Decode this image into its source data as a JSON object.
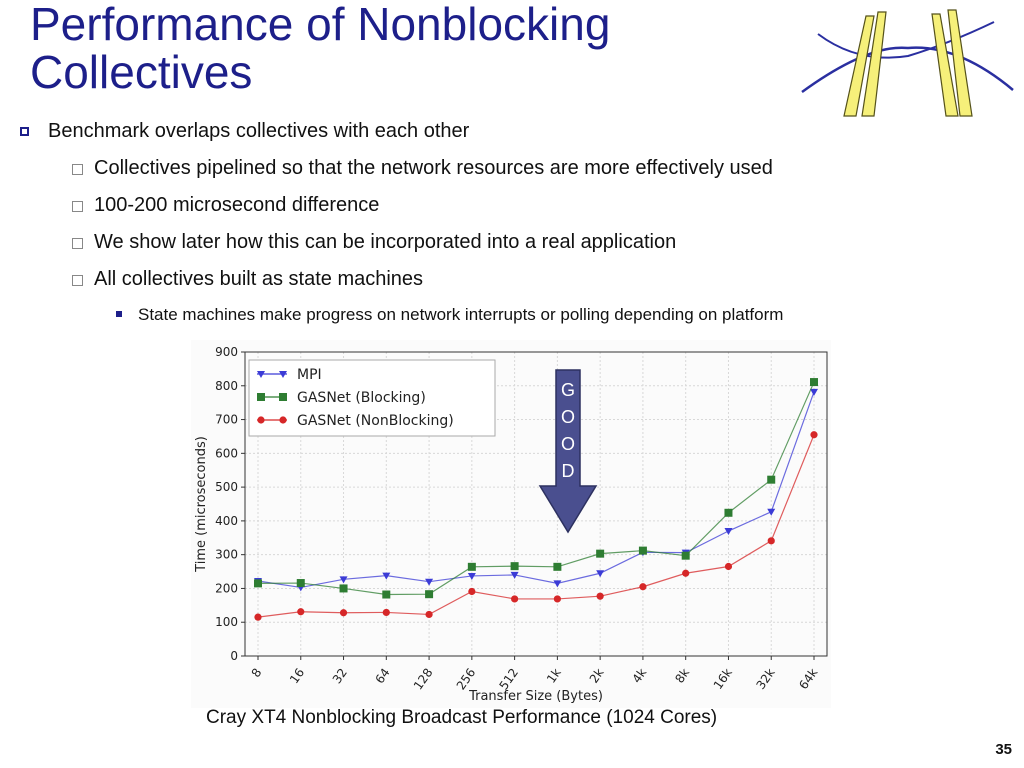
{
  "slide": {
    "title_line1": "Performance of Nonblocking",
    "title_line2": "Collectives",
    "page_number": "35",
    "caption": "Cray XT4 Nonblocking Broadcast Performance (1024 Cores)",
    "colors": {
      "title": "#1d1f8a",
      "arrow_fill": "#4a4f8f",
      "arrow_text": "#ffffff"
    }
  },
  "bullets": [
    {
      "level": 1,
      "text": "Benchmark overlaps collectives with each other"
    },
    {
      "level": 2,
      "text": "Collectives pipelined so that the network resources are more effectively used"
    },
    {
      "level": 2,
      "text": "100-200 microsecond difference"
    },
    {
      "level": 2,
      "text": "We show later how this can be incorporated into a real application"
    },
    {
      "level": 2,
      "text": "All collectives built as state machines"
    },
    {
      "level": 3,
      "text": "State machines make progress on network interrupts or polling depending on platform"
    }
  ],
  "annotation": {
    "letters": [
      "G",
      "O",
      "O",
      "D"
    ],
    "icon": "down-arrow-icon"
  },
  "chart_data": {
    "type": "line",
    "title": "",
    "xlabel": "Transfer Size (Bytes)",
    "ylabel": "Time (microseconds)",
    "ylim": [
      0,
      900
    ],
    "yticks": [
      0,
      100,
      200,
      300,
      400,
      500,
      600,
      700,
      800,
      900
    ],
    "categories": [
      "8",
      "16",
      "32",
      "64",
      "128",
      "256",
      "512",
      "1k",
      "2k",
      "4k",
      "8k",
      "16k",
      "32k",
      "64k"
    ],
    "grid": true,
    "legend_position": "top-left",
    "series": [
      {
        "name": "MPI",
        "color": "#3b3bd6",
        "marker": "triangle-down",
        "values": [
          222,
          203,
          227,
          238,
          220,
          237,
          240,
          215,
          245,
          307,
          306,
          370,
          427,
          782
        ]
      },
      {
        "name": "GASNet (Blocking)",
        "color": "#2e7d32",
        "marker": "square",
        "values": [
          215,
          216,
          200,
          182,
          183,
          264,
          266,
          264,
          303,
          312,
          297,
          424,
          522,
          811
        ]
      },
      {
        "name": "GASNet (NonBlocking)",
        "color": "#d62728",
        "marker": "circle",
        "values": [
          115,
          131,
          128,
          129,
          123,
          191,
          169,
          169,
          177,
          205,
          245,
          265,
          341,
          655
        ]
      }
    ]
  }
}
